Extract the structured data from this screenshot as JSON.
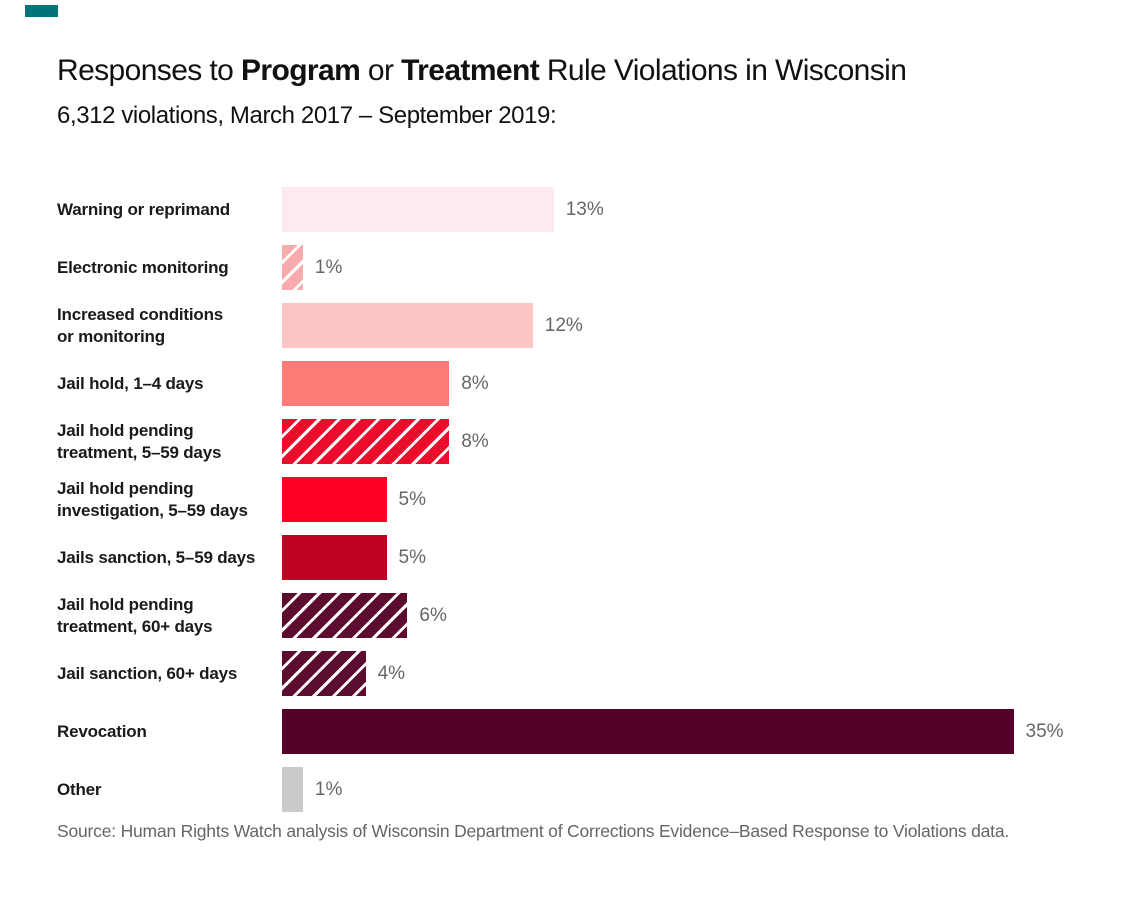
{
  "brand": {
    "accent_color": "#00737b"
  },
  "header": {
    "title_parts": [
      {
        "text": "Responses to ",
        "bold": false
      },
      {
        "text": "Program",
        "bold": true
      },
      {
        "text": " or ",
        "bold": false
      },
      {
        "text": "Treatment",
        "bold": true
      },
      {
        "text": " Rule Violations in Wisconsin",
        "bold": false
      }
    ],
    "subtitle": "6,312 violations, March 2017 – September 2019:"
  },
  "chart_data": {
    "type": "bar",
    "orientation": "horizontal",
    "title": "Responses to Program or Treatment Rule Violations in Wisconsin",
    "subtitle": "6,312 violations, March 2017 – September 2019:",
    "unit": "%",
    "xlim": [
      0,
      38
    ],
    "grid": false,
    "legend": false,
    "categories": [
      "Warning or reprimand",
      "Electronic monitoring",
      "Increased conditions or monitoring",
      "Jail hold, 1–4 days",
      "Jail hold pending treatment, 5–59 days",
      "Jail hold pending investigation, 5–59 days",
      "Jails sanction, 5–59 days",
      "Jail hold pending treatment, 60+ days",
      "Jail sanction, 60+ days",
      "Revocation",
      "Other"
    ],
    "values": [
      13,
      1,
      12,
      8,
      8,
      5,
      5,
      6,
      4,
      35,
      1
    ],
    "rows": [
      {
        "label": "Warning or reprimand",
        "value": 13,
        "value_label": "13%",
        "fill": "#fdeaee",
        "hatched": false
      },
      {
        "label": "Electronic monitoring",
        "value": 1,
        "value_label": "1%",
        "fill": "#f8abad",
        "hatched": true,
        "hatch_bg": "#ffffff"
      },
      {
        "label": "Increased conditions\nor monitoring",
        "value": 12,
        "value_label": "12%",
        "fill": "#fec5c7",
        "hatched": false
      },
      {
        "label": "Jail hold, 1–4 days",
        "value": 8,
        "value_label": "8%",
        "fill": "#fe7a76",
        "hatched": false
      },
      {
        "label": "Jail hold pending\ntreatment, 5–59 days",
        "value": 8,
        "value_label": "8%",
        "fill": "#ec0c2b",
        "hatched": true,
        "hatch_bg": "#ffffff"
      },
      {
        "label": "Jail hold pending\ninvestigation, 5–59 days",
        "value": 5,
        "value_label": "5%",
        "fill": "#fe0026",
        "hatched": false
      },
      {
        "label": "Jails sanction, 5–59 days",
        "value": 5,
        "value_label": "5%",
        "fill": "#bf0223",
        "hatched": false
      },
      {
        "label": "Jail hold pending\ntreatment, 60+ days",
        "value": 6,
        "value_label": "6%",
        "fill": "#5c0c2f",
        "hatched": true,
        "hatch_bg": "#ffffff"
      },
      {
        "label": "Jail sanction, 60+ days",
        "value": 4,
        "value_label": "4%",
        "fill": "#5c0c2f",
        "hatched": true,
        "hatch_bg": "#ffffff"
      },
      {
        "label": "Revocation",
        "value": 35,
        "value_label": "35%",
        "fill": "#560127",
        "hatched": false
      },
      {
        "label": "Other",
        "value": 1,
        "value_label": "1%",
        "fill": "#cbcbcb",
        "hatched": false
      }
    ],
    "source": "Source: Human Rights Watch analysis of Wisconsin Department of Corrections Evidence–Based Response to Violations data."
  }
}
